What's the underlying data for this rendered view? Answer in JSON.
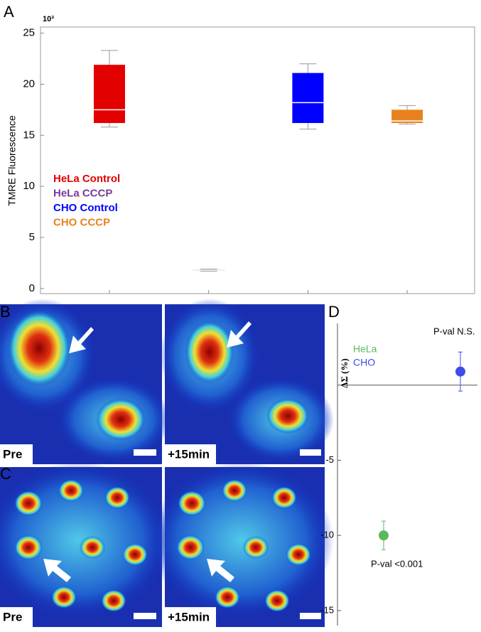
{
  "panel_labels": [
    "A",
    "B",
    "C",
    "D"
  ],
  "image_labels": {
    "B": [
      "Pre",
      "+15min"
    ],
    "C": [
      "Pre",
      "+15min"
    ]
  },
  "chart_data": [
    {
      "type": "box",
      "y_label": "TMRE Fluorescence",
      "y_scale_label": "10³",
      "ylim": [
        -0.5,
        25.6
      ],
      "yticks": [
        0,
        5,
        10,
        15,
        20,
        25
      ],
      "series": [
        {
          "name": "HeLa Control",
          "color": "#e30000",
          "min": 15.8,
          "q1": 16.2,
          "median": 17.5,
          "q3": 21.9,
          "max": 23.3
        },
        {
          "name": "HeLa CCCP",
          "color": "#7a3a9a",
          "min": 1.7,
          "q1": 1.75,
          "median": 1.8,
          "q3": 1.85,
          "max": 1.9
        },
        {
          "name": "CHO Control",
          "color": "#0000ff",
          "min": 15.6,
          "q1": 16.2,
          "median": 18.2,
          "q3": 21.1,
          "max": 22.0
        },
        {
          "name": "CHO CCCP",
          "color": "#e8821e",
          "min": 16.1,
          "q1": 16.2,
          "median": 16.4,
          "q3": 17.5,
          "max": 17.9
        }
      ]
    },
    {
      "type": "errorbar",
      "y_label": "ΔΣ (%)",
      "ylim": [
        -16,
        4.1
      ],
      "yticks": [
        -15,
        -10,
        -5
      ],
      "series": [
        {
          "name": "HeLa",
          "color": "#5cb85c",
          "values": [
            -10
          ],
          "errors": [
            0.95
          ],
          "annotation": "P-val <0.001"
        },
        {
          "name": "CHO",
          "color": "#3b4ee8",
          "values": [
            0.9
          ],
          "errors": [
            1.3
          ],
          "annotation": "P-val N.S."
        }
      ]
    }
  ]
}
